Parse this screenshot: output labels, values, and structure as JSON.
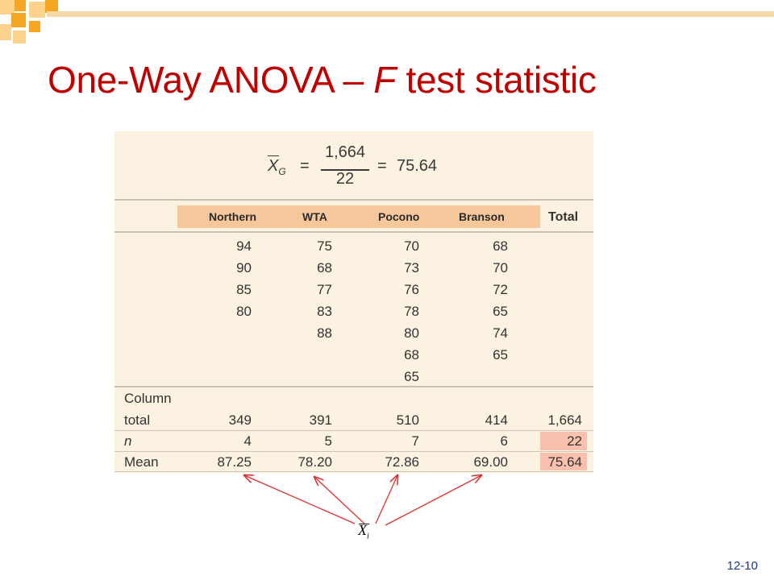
{
  "title": {
    "main": "One-Way ANOVA – ",
    "italic": "F",
    "rest": " test statistic"
  },
  "formula": {
    "symbol": "X",
    "subscript": "G",
    "numerator": "1,664",
    "denominator": "22",
    "result": "75.64",
    "equals": "="
  },
  "columns": [
    "Northern",
    "WTA",
    "Pocono",
    "Branson"
  ],
  "total_header": "Total",
  "data": {
    "Northern": [
      "94",
      "90",
      "85",
      "80"
    ],
    "WTA": [
      "75",
      "68",
      "77",
      "83",
      "88"
    ],
    "Pocono": [
      "70",
      "73",
      "76",
      "78",
      "80",
      "68",
      "65"
    ],
    "Branson": [
      "68",
      "70",
      "72",
      "65",
      "74",
      "65"
    ]
  },
  "summary": {
    "column_total_label_1": "Column",
    "column_total_label_2": "total",
    "column_totals": [
      "349",
      "391",
      "510",
      "414"
    ],
    "grand_total": "1,664",
    "n_label": "n",
    "n_values": [
      "4",
      "5",
      "7",
      "6"
    ],
    "n_total": "22",
    "mean_label": "Mean",
    "means": [
      "87.25",
      "78.20",
      "72.86",
      "69.00"
    ],
    "grand_mean": "75.64"
  },
  "annotation": {
    "symbol": "X",
    "subscript": "i"
  },
  "slide_number": "12-10",
  "colors": {
    "title": "#c00000",
    "table_bg": "#fbf2e1",
    "header_band": "#f7c79c",
    "highlight": "#f8c0ad",
    "arrow": "#e03030",
    "deco_orange": "#f5a623",
    "deco_light": "#fbd38d"
  }
}
